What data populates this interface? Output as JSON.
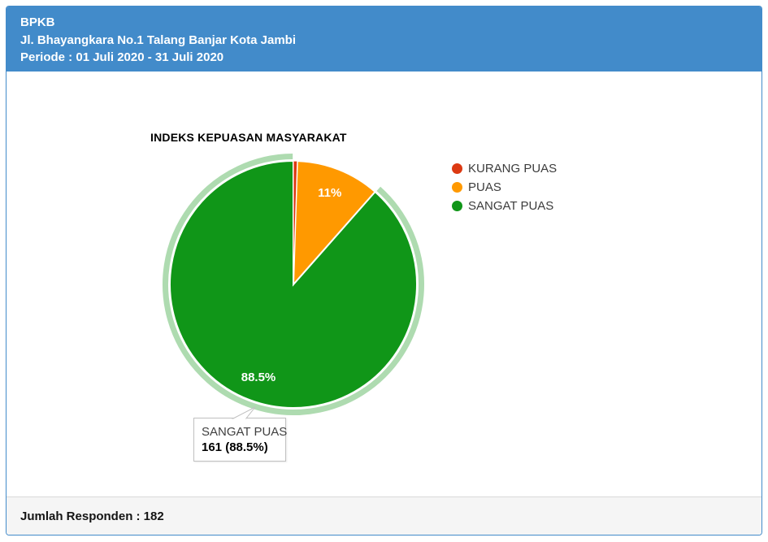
{
  "panel": {
    "header": {
      "bg_color": "#428bca",
      "line1": "BPKB",
      "line2": "Jl. Bhayangkara No.1 Talang Banjar Kota Jambi",
      "line3": "Periode : 01 Juli 2020 - 31 Juli 2020"
    },
    "footer": {
      "respondents_text": "Jumlah Responden : 182"
    }
  },
  "chart_data": {
    "type": "pie",
    "title": "INDEKS KEPUASAN MASYARAKAT",
    "direction": "clockwise",
    "start_angle_deg": 0,
    "legend_position": "right",
    "total_respondents": 182,
    "slices": [
      {
        "label": "KURANG PUAS",
        "percent": 0.5,
        "color": "#dc3912",
        "slice_label": ""
      },
      {
        "label": "PUAS",
        "percent": 11,
        "color": "#ff9900",
        "slice_label": "11%"
      },
      {
        "label": "SANGAT PUAS",
        "percent": 88.5,
        "count": 161,
        "color": "#109618",
        "slice_label": "88.5%",
        "highlighted": true,
        "highlight_ring_color": "#aedbb0"
      }
    ]
  },
  "legend": {
    "items": [
      {
        "label": "KURANG PUAS",
        "color": "#dc3912"
      },
      {
        "label": "PUAS",
        "color": "#ff9900"
      },
      {
        "label": "SANGAT PUAS",
        "color": "#109618"
      }
    ]
  },
  "tooltip": {
    "label": "SANGAT PUAS",
    "value": "161 (88.5%)"
  }
}
